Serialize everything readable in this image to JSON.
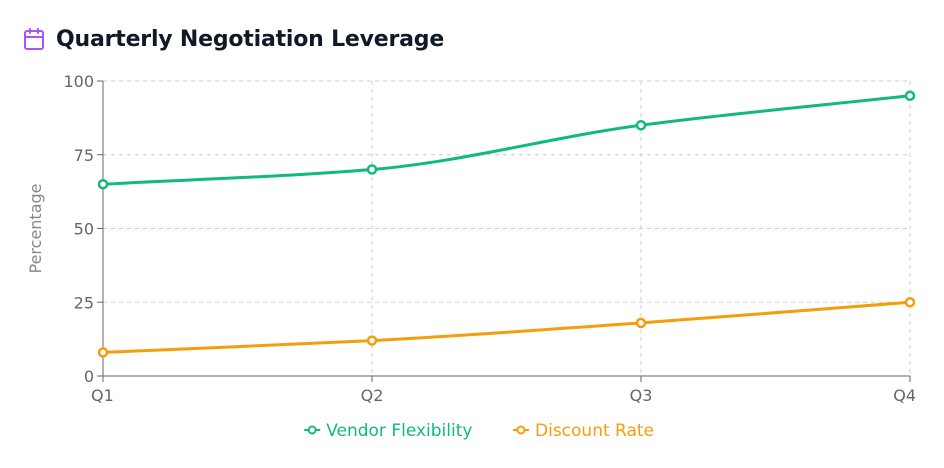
{
  "header": {
    "title": "Quarterly Negotiation Leverage",
    "icon": "calendar-icon",
    "icon_color": "#a855f7"
  },
  "chart_data": {
    "type": "line",
    "title": "Quarterly Negotiation Leverage",
    "categories": [
      "Q1",
      "Q2",
      "Q3",
      "Q4"
    ],
    "series": [
      {
        "name": "Vendor Flexibility",
        "values": [
          65,
          70,
          85,
          95
        ],
        "color": "#10b981"
      },
      {
        "name": "Discount Rate",
        "values": [
          8,
          12,
          18,
          25
        ],
        "color": "#f59e0b"
      }
    ],
    "xlabel": "",
    "ylabel": "Percentage",
    "ylim": [
      0,
      100
    ],
    "yticks": [
      0,
      25,
      50,
      75,
      100
    ],
    "grid": true,
    "legend": "bottom-center"
  }
}
